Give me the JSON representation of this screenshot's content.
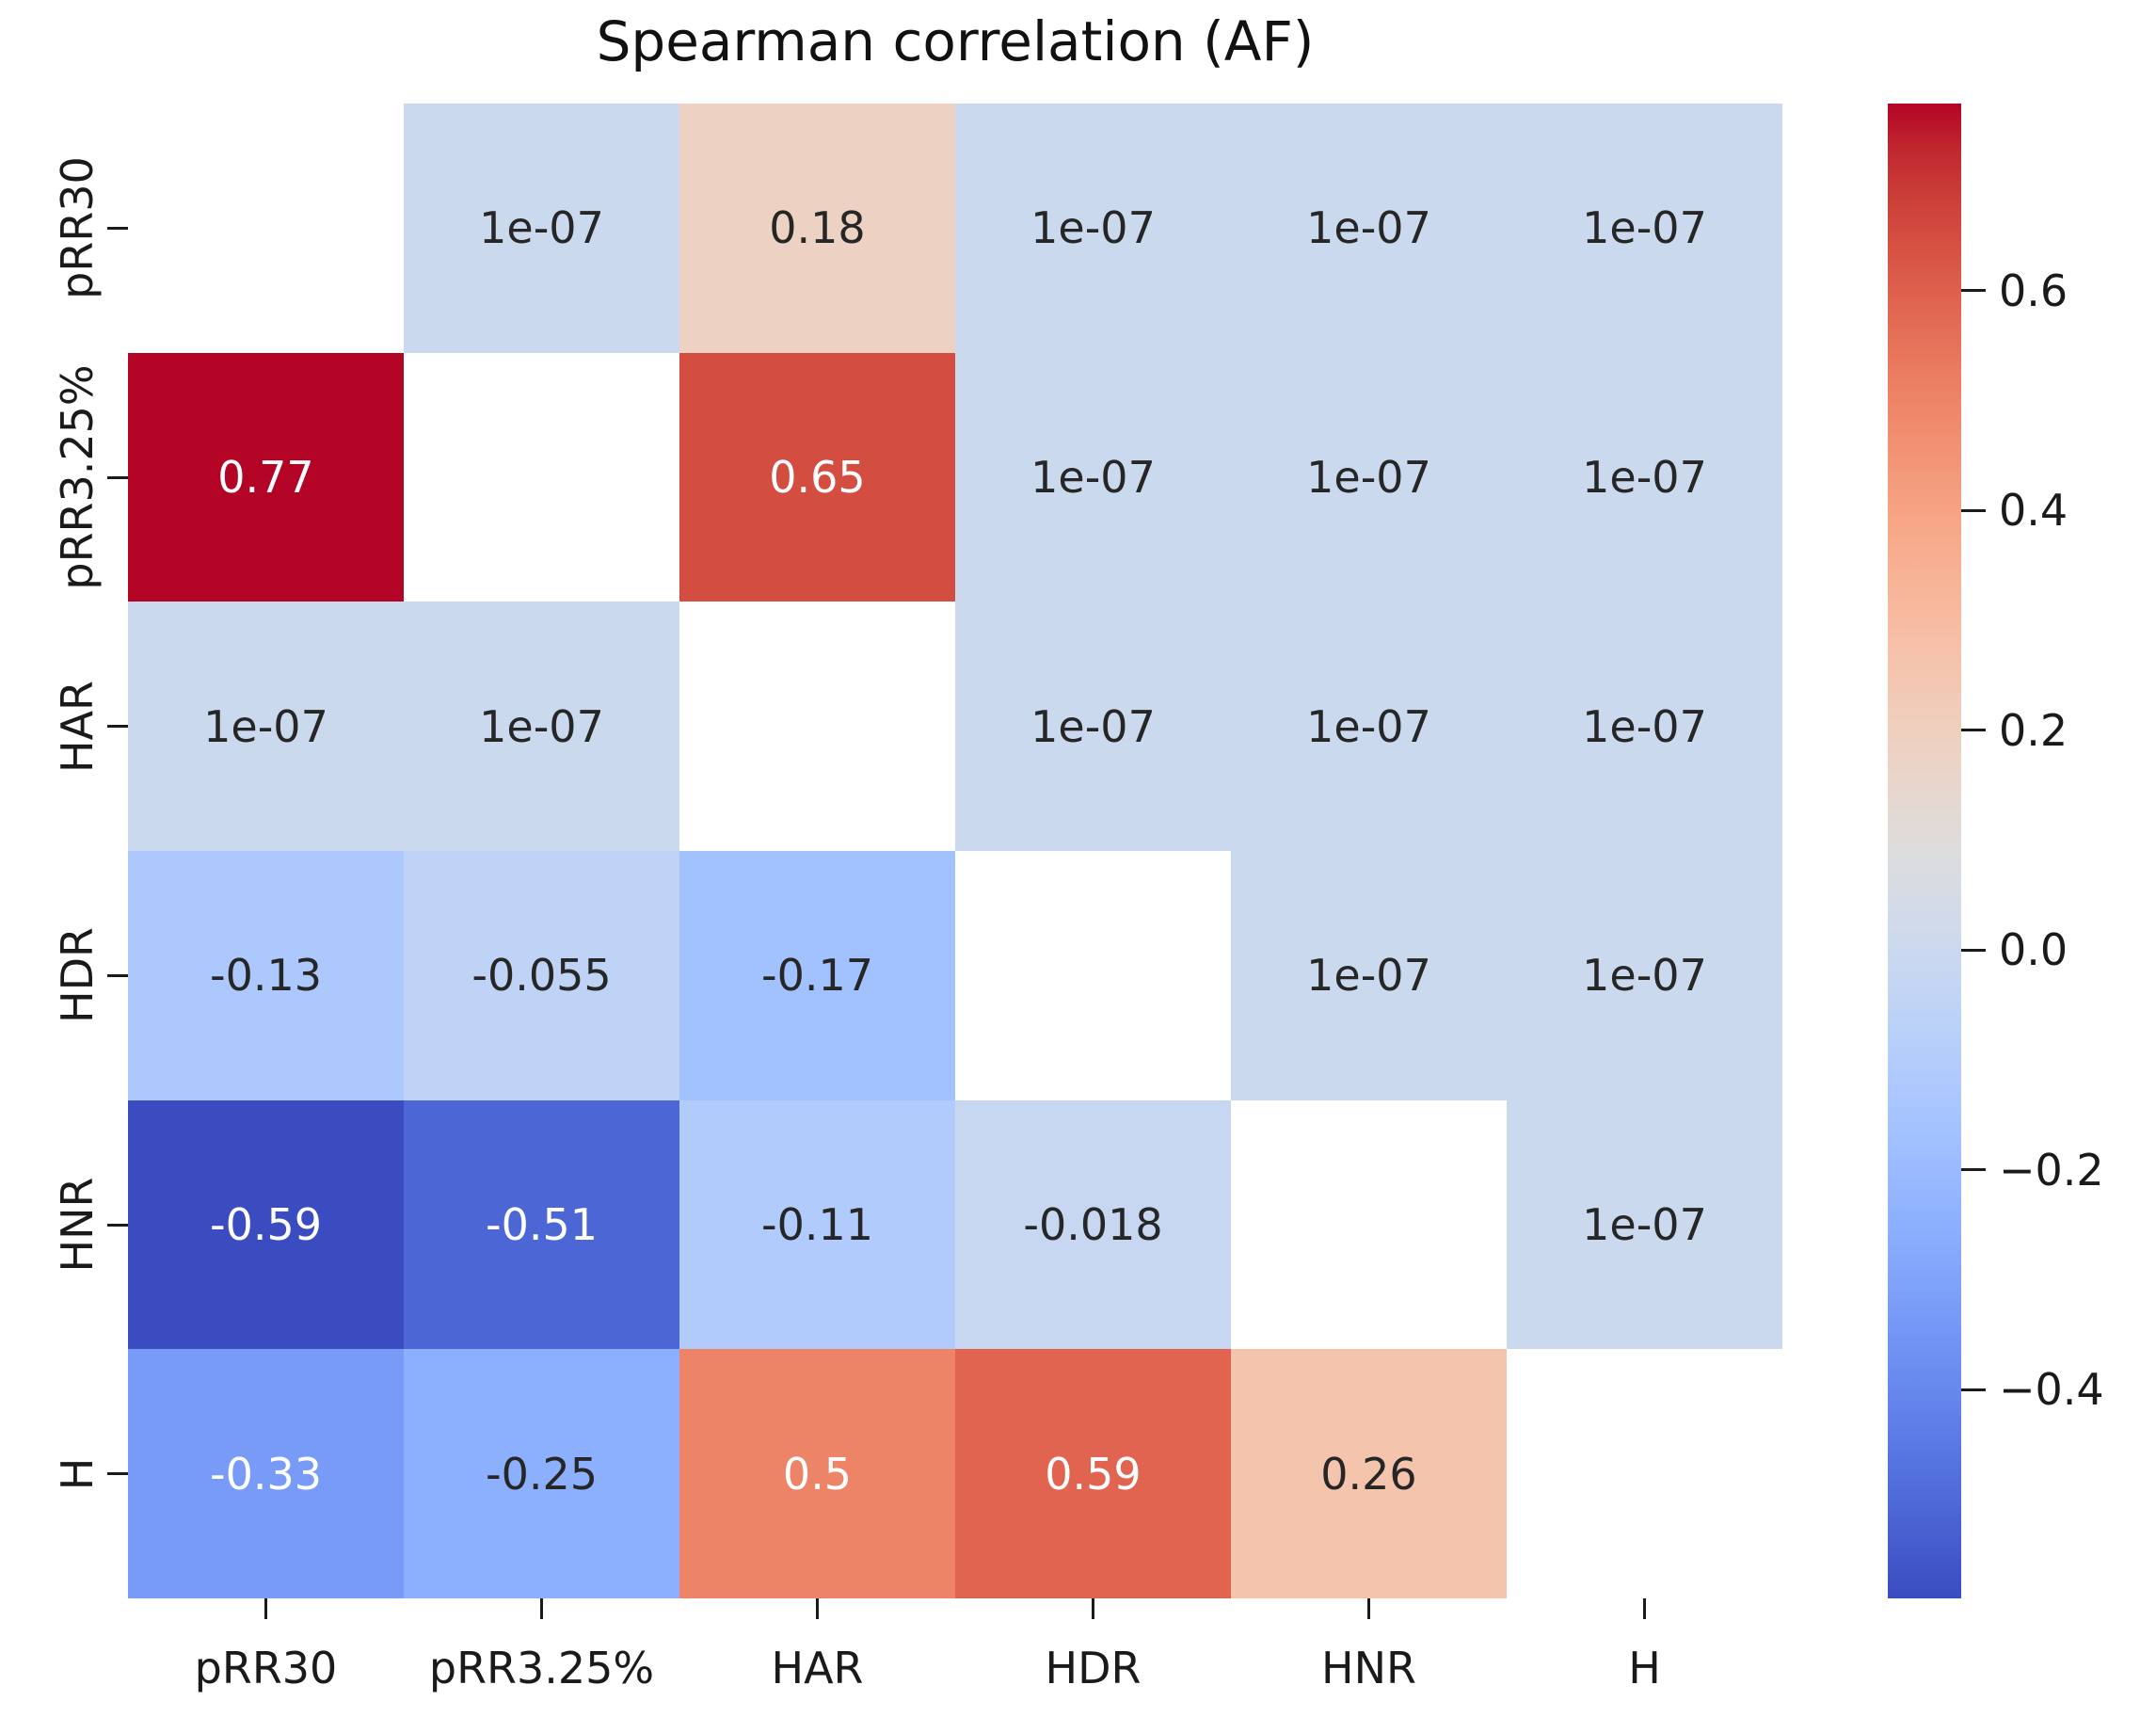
{
  "title": "Spearman correlation (AF)",
  "chart_data": {
    "type": "heatmap",
    "title": "Spearman correlation (AF)",
    "x_labels": [
      "pRR30",
      "pRR3.25%",
      "HAR",
      "HDR",
      "HNR",
      "H"
    ],
    "y_labels": [
      "pRR30",
      "pRR3.25%",
      "HAR",
      "HDR",
      "HNR",
      "H"
    ],
    "cells_text": [
      [
        null,
        "1e-07",
        "0.18",
        "1e-07",
        "1e-07",
        "1e-07"
      ],
      [
        "0.77",
        null,
        "0.65",
        "1e-07",
        "1e-07",
        "1e-07"
      ],
      [
        "1e-07",
        "1e-07",
        null,
        "1e-07",
        "1e-07",
        "1e-07"
      ],
      [
        "-0.13",
        "-0.055",
        "-0.17",
        null,
        "1e-07",
        "1e-07"
      ],
      [
        "-0.59",
        "-0.51",
        "-0.11",
        "-0.018",
        null,
        "1e-07"
      ],
      [
        "-0.33",
        "-0.25",
        "0.5",
        "0.59",
        "0.26",
        null
      ]
    ],
    "cells_value": [
      [
        null,
        1e-07,
        0.18,
        1e-07,
        1e-07,
        1e-07
      ],
      [
        0.77,
        null,
        0.65,
        1e-07,
        1e-07,
        1e-07
      ],
      [
        1e-07,
        1e-07,
        null,
        1e-07,
        1e-07,
        1e-07
      ],
      [
        -0.13,
        -0.055,
        -0.17,
        null,
        1e-07,
        1e-07
      ],
      [
        -0.59,
        -0.51,
        -0.11,
        -0.018,
        null,
        1e-07
      ],
      [
        -0.33,
        -0.25,
        0.5,
        0.59,
        0.26,
        null
      ]
    ],
    "mask": "diagonal-blank-white",
    "colormap": "coolwarm",
    "vmin": -0.59,
    "vmax": 0.77,
    "legend_position": "right-colorbar",
    "grid": false,
    "colorbar_ticks": [
      {
        "label": "0.6",
        "value": 0.6
      },
      {
        "label": "0.4",
        "value": 0.4
      },
      {
        "label": "0.2",
        "value": 0.2
      },
      {
        "label": "0.0",
        "value": 0.0
      },
      {
        "label": "−0.2",
        "value": -0.2
      },
      {
        "label": "−0.4",
        "value": -0.4
      }
    ],
    "colors": {
      "annotation_dark": "#262626",
      "annotation_light": "#ffffff",
      "masked_cell": "#ffffff",
      "colormap_min": "#3b4cc0",
      "colormap_mid": "#dddddd",
      "colormap_max": "#b40426",
      "axis_text": "#1a1a1a",
      "background": "#ffffff"
    }
  }
}
